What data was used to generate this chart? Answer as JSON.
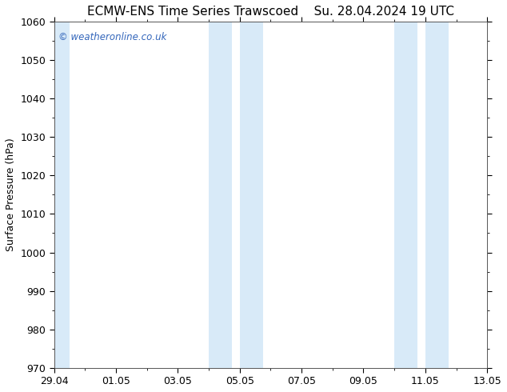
{
  "title_left": "ECMW-ENS Time Series Trawscoed",
  "title_right": "Su. 28.04.2024 19 UTC",
  "ylabel": "Surface Pressure (hPa)",
  "ylim": [
    970,
    1060
  ],
  "yticks": [
    970,
    980,
    990,
    1000,
    1010,
    1020,
    1030,
    1040,
    1050,
    1060
  ],
  "xtick_labels": [
    "29.04",
    "01.05",
    "03.05",
    "05.05",
    "07.05",
    "09.05",
    "11.05",
    "13.05"
  ],
  "xtick_positions": [
    0,
    2,
    4,
    6,
    8,
    10,
    12,
    14
  ],
  "xlim": [
    0,
    14
  ],
  "shaded_bands": [
    {
      "xmin": -0.25,
      "xmax": 0.5
    },
    {
      "xmin": 5.0,
      "xmax": 5.75
    },
    {
      "xmin": 6.0,
      "xmax": 6.75
    },
    {
      "xmin": 11.0,
      "xmax": 11.75
    },
    {
      "xmin": 12.0,
      "xmax": 12.75
    }
  ],
  "shade_color": "#d8eaf8",
  "watermark": "© weatheronline.co.uk",
  "watermark_color": "#3366bb",
  "background_color": "#ffffff",
  "plot_bg_color": "#ffffff",
  "title_fontsize": 11,
  "label_fontsize": 9,
  "tick_fontsize": 9,
  "spine_color": "#555555"
}
